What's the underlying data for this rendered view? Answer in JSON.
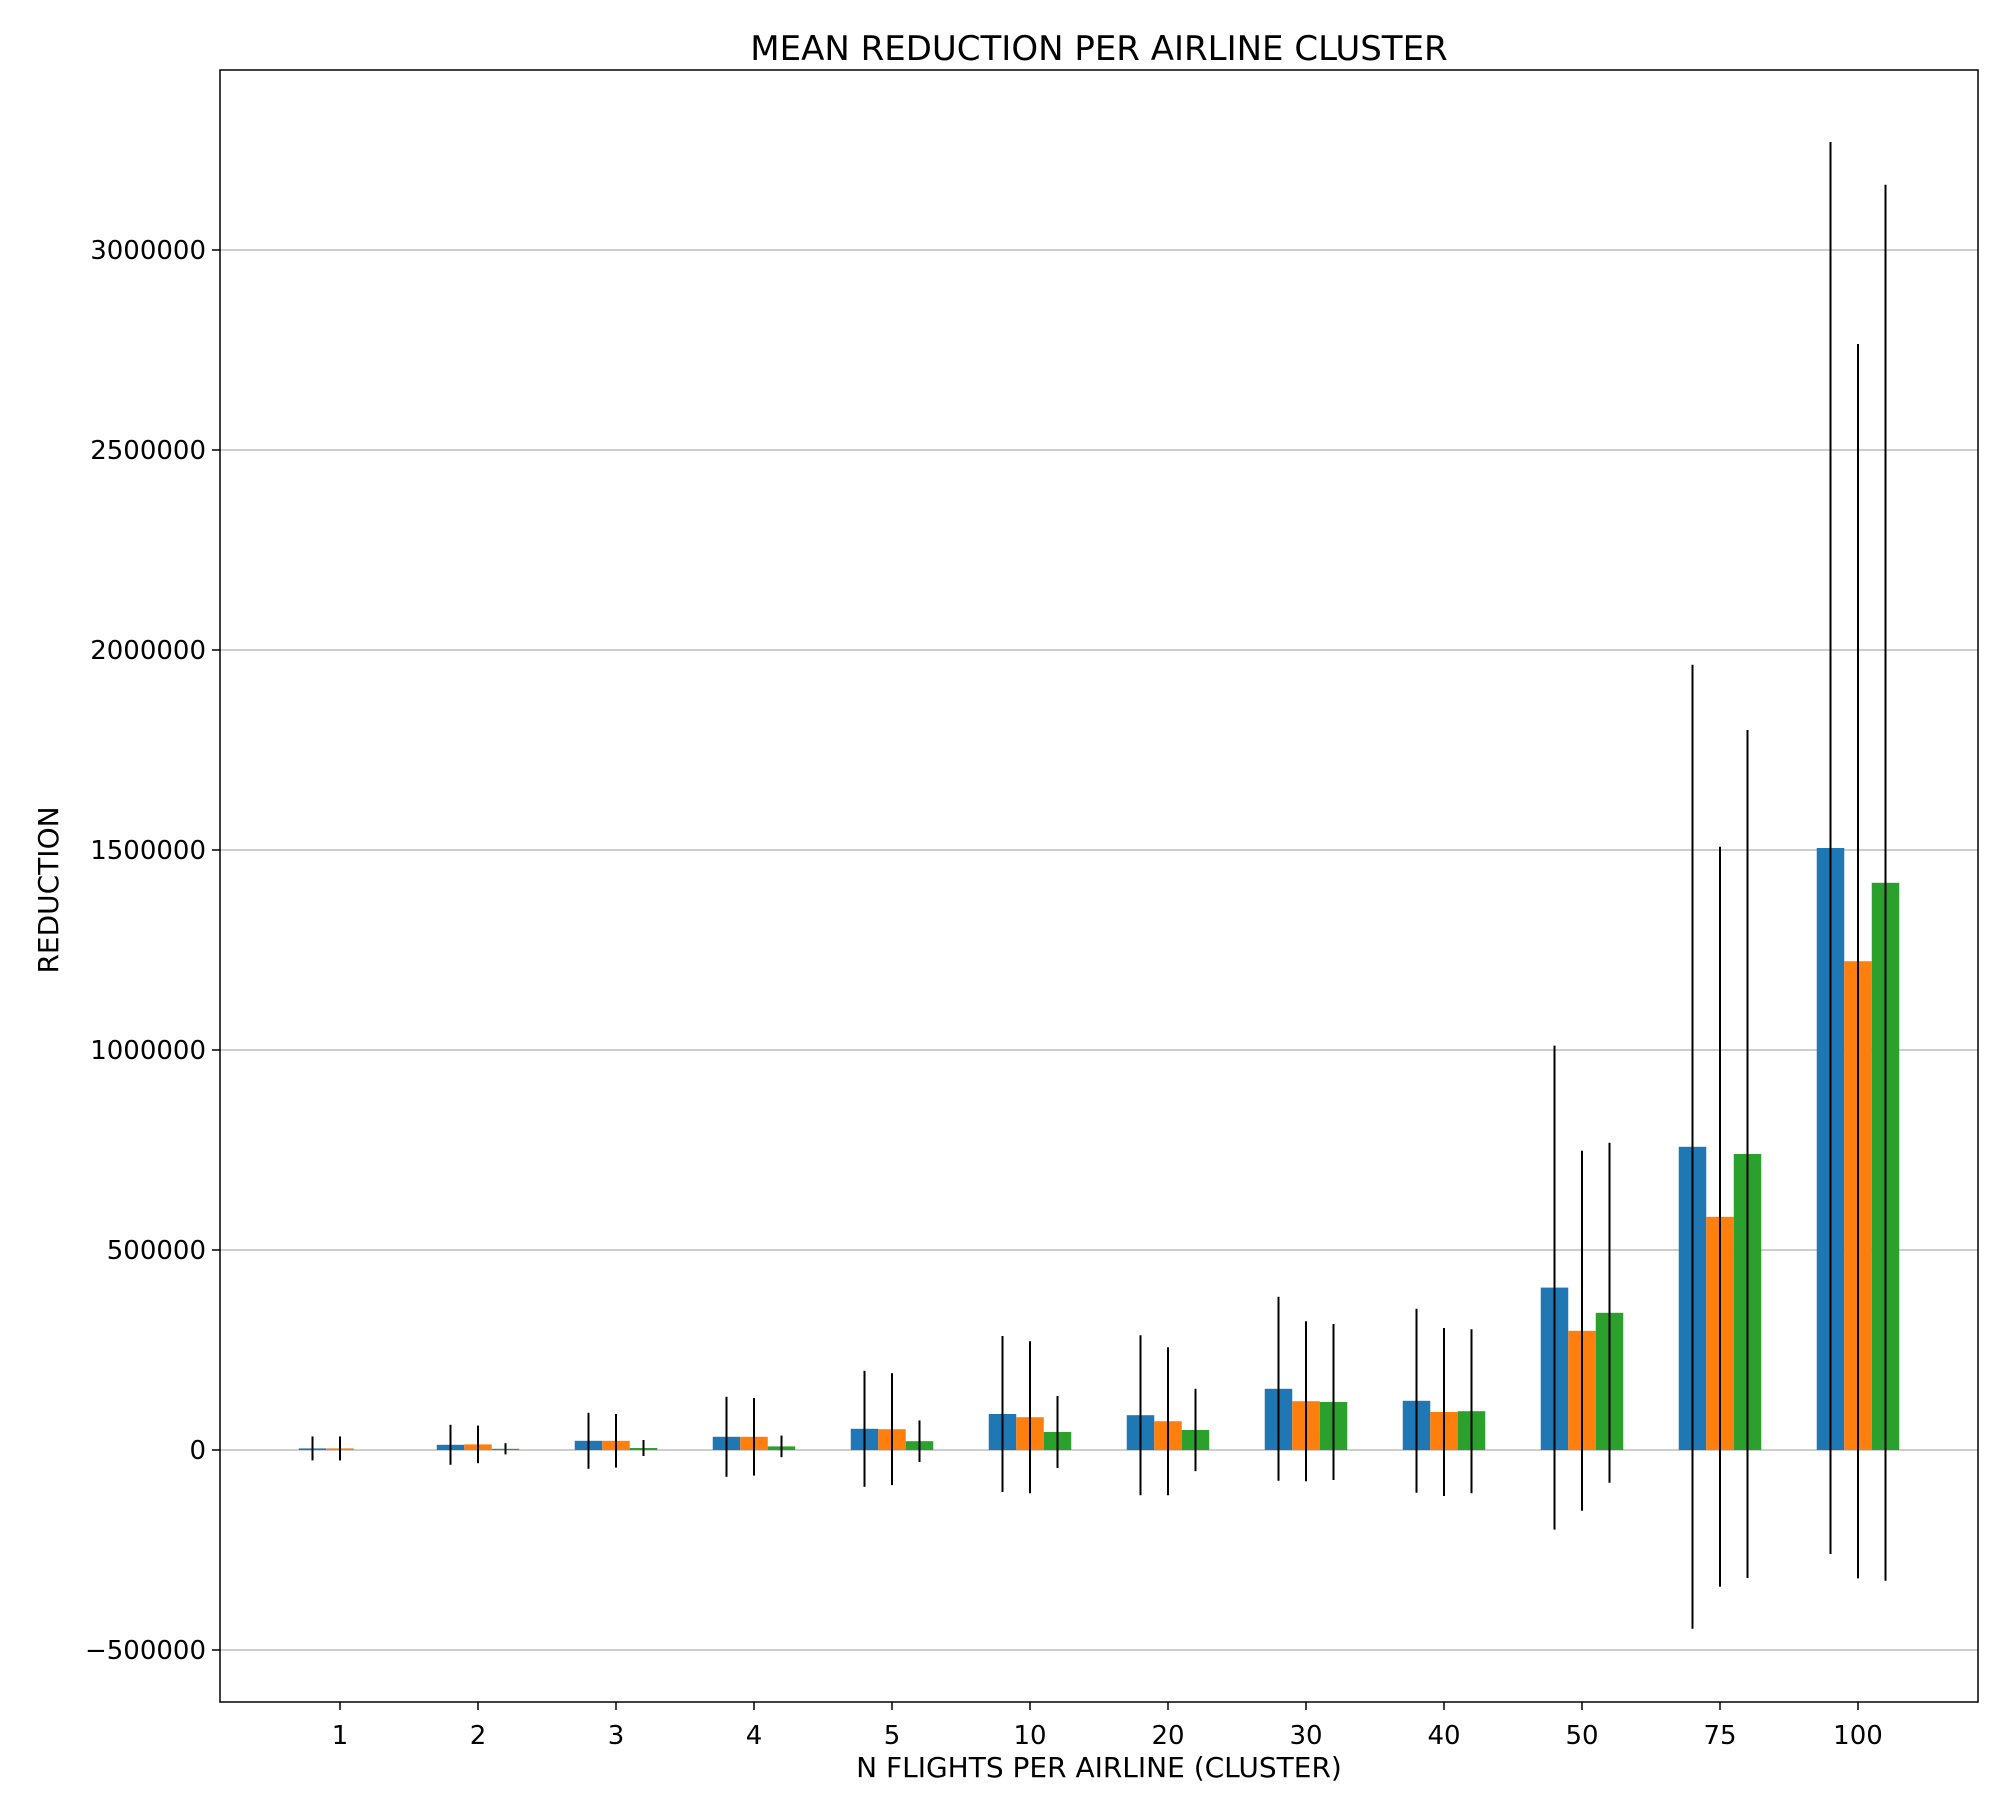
{
  "chart_data": {
    "type": "bar",
    "title": "MEAN REDUCTION PER AIRLINE CLUSTER",
    "xlabel": "N FLIGHTS PER AIRLINE (CLUSTER)",
    "ylabel": "REDUCTION",
    "categories": [
      "1",
      "2",
      "3",
      "4",
      "5",
      "10",
      "20",
      "30",
      "40",
      "50",
      "75",
      "100"
    ],
    "ylim": [
      -630000,
      3450000
    ],
    "yticks": [
      -500000,
      0,
      500000,
      1000000,
      1500000,
      2000000,
      2500000,
      3000000
    ],
    "ytick_labels": [
      "−500000",
      "0",
      "500000",
      "1000000",
      "1500000",
      "2000000",
      "2500000",
      "3000000"
    ],
    "grid": "y",
    "legend": "none",
    "series": [
      {
        "color": "#1f77b4",
        "values": [
          4000,
          13000,
          23000,
          33000,
          53000,
          90000,
          87000,
          153000,
          123000,
          406000,
          758000,
          1505000
        ],
        "errors": [
          30000,
          50000,
          70000,
          100000,
          145000,
          195000,
          200000,
          230000,
          230000,
          605000,
          1205000,
          1765000
        ]
      },
      {
        "color": "#ff7f0e",
        "values": [
          4000,
          14000,
          23000,
          33000,
          52000,
          82000,
          72000,
          122000,
          95000,
          298000,
          583000,
          1222000
        ],
        "errors": [
          30000,
          47000,
          67000,
          97000,
          140000,
          190000,
          185000,
          200000,
          210000,
          450000,
          925000,
          1543000
        ]
      },
      {
        "color": "#2ca02c",
        "values": [
          0,
          3000,
          5000,
          9000,
          22000,
          45000,
          50000,
          120000,
          97000,
          343000,
          740000,
          1418000
        ],
        "errors": [
          0,
          14000,
          20000,
          27000,
          52000,
          90000,
          103000,
          195000,
          205000,
          425000,
          1060000,
          1745000
        ]
      }
    ]
  }
}
